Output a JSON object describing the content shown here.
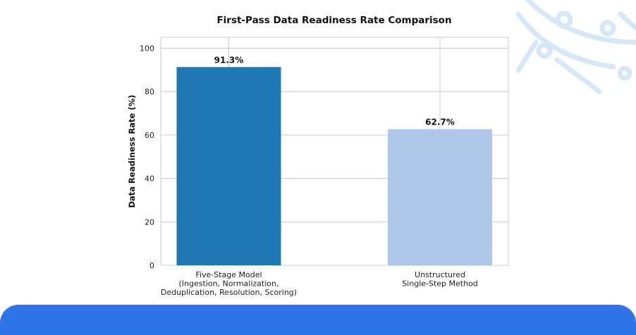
{
  "chart_data": {
    "type": "bar",
    "title": "First-Pass Data Readiness Rate Comparison",
    "xlabel": "",
    "ylabel": "Data Readiness Rate (%)",
    "ylim": [
      0,
      105
    ],
    "yticks": [
      0,
      20,
      40,
      60,
      80,
      100
    ],
    "grid": true,
    "categories": [
      [
        "Five-Stage Model",
        "(Ingestion, Normalization,",
        "Deduplication, Resolution, Scoring)"
      ],
      [
        "Unstructured",
        "Single-Step Method"
      ]
    ],
    "values": [
      91.3,
      62.7
    ],
    "data_labels": [
      "91.3%",
      "62.7%"
    ],
    "colors": [
      "#1f77b4",
      "#aec7e8"
    ]
  }
}
